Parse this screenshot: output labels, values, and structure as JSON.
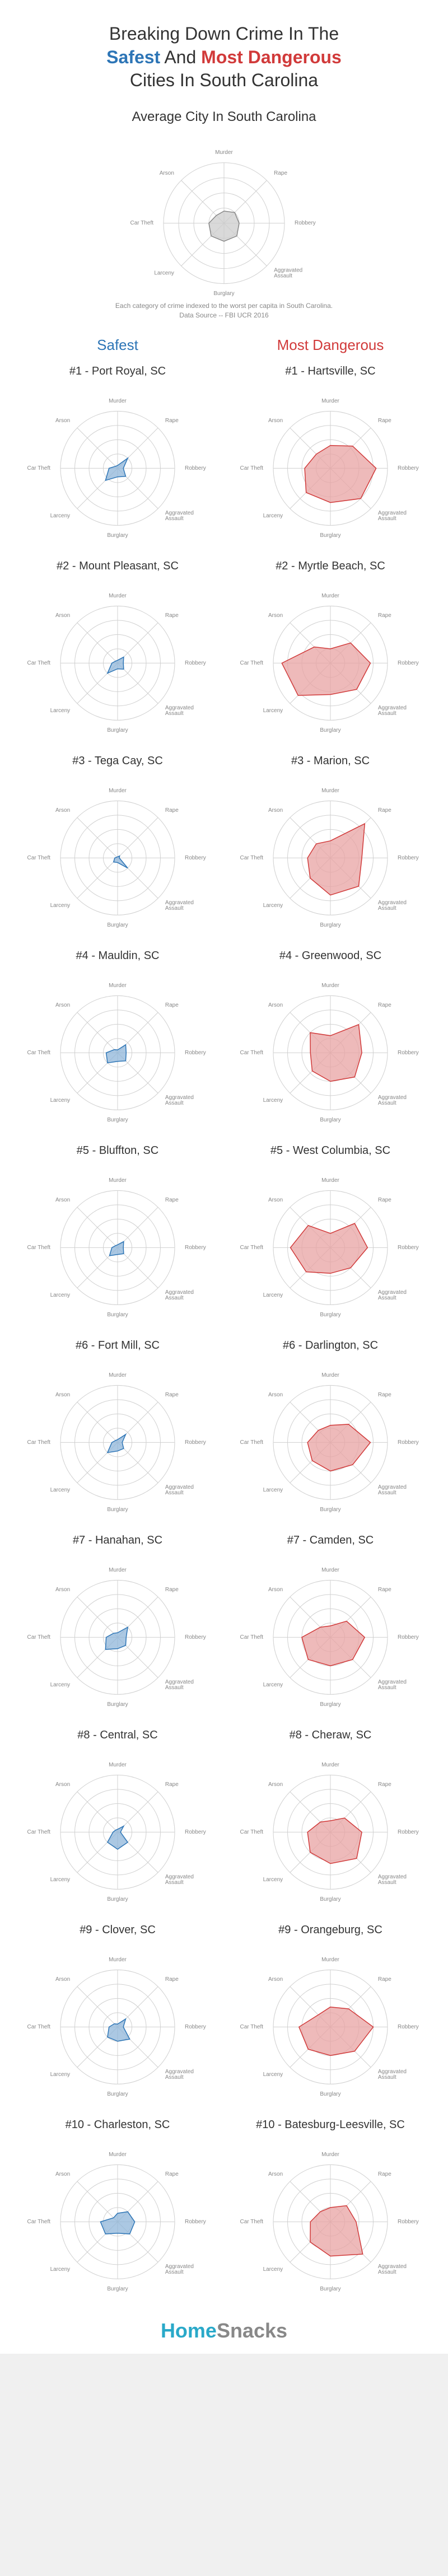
{
  "title_line1": "Breaking Down Crime In The",
  "title_safest": "Safest",
  "title_and": " And ",
  "title_danger": "Most Dangerous",
  "title_line2": "Cities In South Carolina",
  "avg_title": "Average City In South Carolina",
  "footnote_line1": "Each category of crime indexed to the worst per capita in South Carolina.",
  "footnote_line2": "Data Source -- FBI UCR 2016",
  "col_head_safe": "Safest",
  "col_head_danger": "Most Dangerous",
  "footer_home": "Home",
  "footer_snacks": "Snacks",
  "colors": {
    "safe_fill": "#8fb6d9",
    "safe_stroke": "#2d75b6",
    "danger_fill": "#e8a3a3",
    "danger_stroke": "#d13a3a",
    "avg_fill": "#cccccc",
    "avg_stroke": "#888888",
    "grid": "#d0d0d0",
    "label": "#888888"
  },
  "radar": {
    "axes": [
      "Murder",
      "Rape",
      "Robbery",
      "Aggravated Assault",
      "Burglary",
      "Larceny",
      "Car Theft",
      "Arson"
    ],
    "axes_short": [
      "Murder",
      "Rape",
      "Robbery",
      "Aggravated\nAssault",
      "Burglary",
      "Larceny",
      "Car Theft",
      "Arson"
    ],
    "rings": 4,
    "max": 1.0
  },
  "avg_values": [
    0.2,
    0.25,
    0.25,
    0.3,
    0.3,
    0.3,
    0.25,
    0.18
  ],
  "cities": [
    {
      "safe": {
        "name": "#1 - Port Royal, SC",
        "v": [
          0.05,
          0.25,
          0.1,
          0.2,
          0.15,
          0.3,
          0.15,
          0.05
        ]
      },
      "danger": {
        "name": "#1 - Hartsville, SC",
        "v": [
          0.4,
          0.55,
          0.8,
          0.75,
          0.6,
          0.6,
          0.45,
          0.35
        ]
      }
    },
    {
      "safe": {
        "name": "#2 - Mount Pleasant, SC",
        "v": [
          0.05,
          0.15,
          0.1,
          0.15,
          0.1,
          0.25,
          0.1,
          0.05
        ]
      },
      "danger": {
        "name": "#2 - Myrtle Beach, SC",
        "v": [
          0.25,
          0.5,
          0.7,
          0.65,
          0.55,
          0.8,
          0.85,
          0.4
        ]
      }
    },
    {
      "safe": {
        "name": "#3 - Tega Cay, SC",
        "v": [
          0.02,
          0.05,
          0.03,
          0.25,
          0.08,
          0.1,
          0.05,
          0.02
        ]
      },
      "danger": {
        "name": "#3 - Marion, SC",
        "v": [
          0.3,
          0.85,
          0.55,
          0.7,
          0.65,
          0.5,
          0.4,
          0.35
        ]
      }
    },
    {
      "safe": {
        "name": "#4 - Mauldin, SC",
        "v": [
          0.05,
          0.2,
          0.15,
          0.2,
          0.15,
          0.25,
          0.2,
          0.08
        ]
      },
      "danger": {
        "name": "#4 - Greenwood, SC",
        "v": [
          0.3,
          0.7,
          0.55,
          0.6,
          0.5,
          0.45,
          0.35,
          0.5
        ]
      }
    },
    {
      "safe": {
        "name": "#5 - Bluffton, SC",
        "v": [
          0.05,
          0.15,
          0.1,
          0.15,
          0.12,
          0.2,
          0.1,
          0.05
        ]
      },
      "danger": {
        "name": "#5 - West Columbia, SC",
        "v": [
          0.25,
          0.6,
          0.65,
          0.5,
          0.45,
          0.6,
          0.7,
          0.55
        ]
      }
    },
    {
      "safe": {
        "name": "#6 - Fort Mill, SC",
        "v": [
          0.05,
          0.2,
          0.08,
          0.15,
          0.15,
          0.25,
          0.1,
          0.05
        ]
      },
      "danger": {
        "name": "#6 - Darlington, SC",
        "v": [
          0.3,
          0.45,
          0.7,
          0.55,
          0.5,
          0.45,
          0.4,
          0.3
        ]
      }
    },
    {
      "safe": {
        "name": "#7 - Hanahan, SC",
        "v": [
          0.08,
          0.25,
          0.15,
          0.2,
          0.2,
          0.3,
          0.2,
          0.1
        ]
      },
      "danger": {
        "name": "#7 - Camden, SC",
        "v": [
          0.2,
          0.4,
          0.6,
          0.55,
          0.5,
          0.55,
          0.5,
          0.25
        ]
      }
    },
    {
      "safe": {
        "name": "#8 - Central, SC",
        "v": [
          0.05,
          0.15,
          0.05,
          0.25,
          0.3,
          0.25,
          0.08,
          0.05
        ]
      },
      "danger": {
        "name": "#8 - Cheraw, SC",
        "v": [
          0.2,
          0.35,
          0.55,
          0.65,
          0.55,
          0.5,
          0.4,
          0.25
        ]
      }
    },
    {
      "safe": {
        "name": "#9 - Clover, SC",
        "v": [
          0.05,
          0.2,
          0.1,
          0.3,
          0.25,
          0.25,
          0.15,
          0.08
        ]
      },
      "danger": {
        "name": "#9 - Orangeburg, SC",
        "v": [
          0.35,
          0.45,
          0.75,
          0.6,
          0.5,
          0.55,
          0.55,
          0.3
        ]
      }
    },
    {
      "safe": {
        "name": "#10 - Charleston, SC",
        "v": [
          0.15,
          0.25,
          0.3,
          0.3,
          0.2,
          0.3,
          0.3,
          0.1
        ]
      },
      "danger": {
        "name": "#10 - Batesburg-Leesville, SC",
        "v": [
          0.25,
          0.4,
          0.45,
          0.8,
          0.6,
          0.5,
          0.35,
          0.25
        ]
      }
    }
  ]
}
